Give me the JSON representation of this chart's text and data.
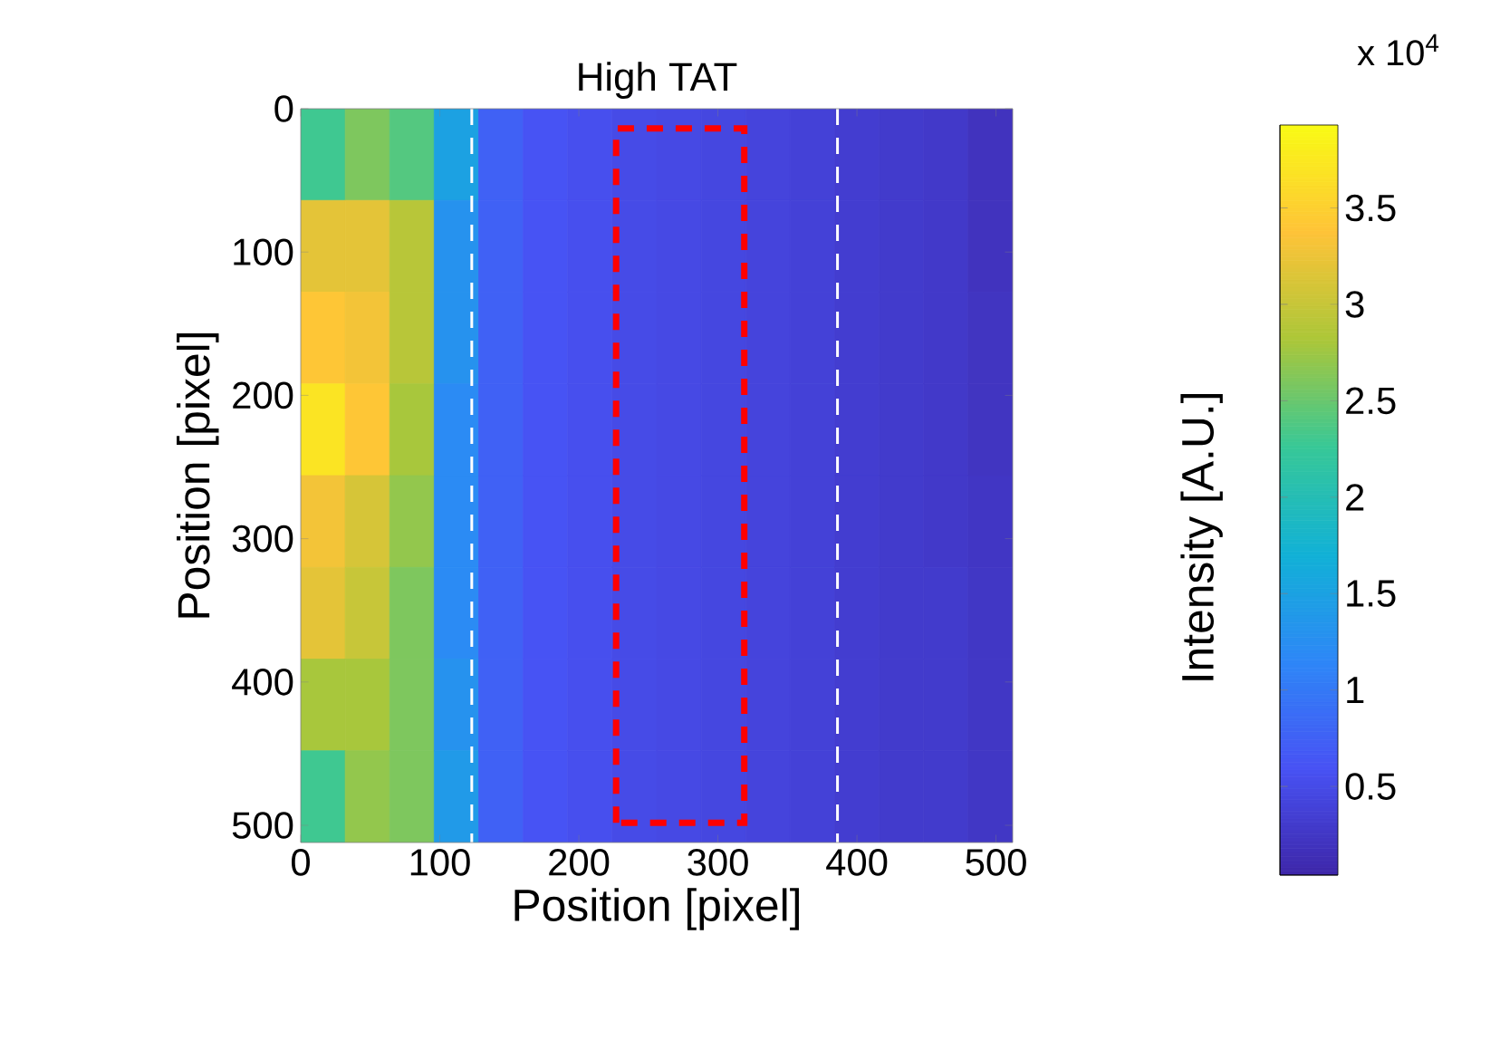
{
  "chart_data": {
    "type": "heatmap",
    "title": "High TAT",
    "xlabel": "Position [pixel]",
    "ylabel": "Position [pixel]",
    "clabel": "Intensity [A.U.]",
    "annotations": [
      "x 10$^{4}$"
    ],
    "x": [
      16,
      48,
      80,
      112,
      144,
      176,
      208,
      240,
      272,
      304,
      336,
      368,
      400,
      432,
      464,
      496
    ],
    "y": [
      32,
      96,
      160,
      224,
      288,
      352,
      416,
      480
    ],
    "cells": [
      [
        2.3,
        2.6,
        2.4,
        1.5,
        0.75,
        0.6,
        0.55,
        0.5,
        0.48,
        0.45,
        0.42,
        0.38,
        0.33,
        0.3,
        0.28,
        0.2
      ],
      [
        3.2,
        3.2,
        2.9,
        1.3,
        0.75,
        0.6,
        0.55,
        0.5,
        0.48,
        0.45,
        0.42,
        0.38,
        0.33,
        0.3,
        0.28,
        0.2
      ],
      [
        3.4,
        3.3,
        2.9,
        1.3,
        0.75,
        0.6,
        0.55,
        0.5,
        0.48,
        0.45,
        0.42,
        0.38,
        0.33,
        0.3,
        0.28,
        0.22
      ],
      [
        3.7,
        3.4,
        2.8,
        1.2,
        0.75,
        0.6,
        0.55,
        0.5,
        0.48,
        0.45,
        0.42,
        0.38,
        0.33,
        0.3,
        0.28,
        0.22
      ],
      [
        3.3,
        3.1,
        2.7,
        1.2,
        0.75,
        0.6,
        0.55,
        0.5,
        0.48,
        0.45,
        0.42,
        0.38,
        0.33,
        0.3,
        0.28,
        0.24
      ],
      [
        3.2,
        3.0,
        2.6,
        1.2,
        0.75,
        0.6,
        0.55,
        0.5,
        0.48,
        0.45,
        0.42,
        0.38,
        0.33,
        0.3,
        0.3,
        0.25
      ],
      [
        2.8,
        2.8,
        2.6,
        1.3,
        0.75,
        0.6,
        0.55,
        0.5,
        0.48,
        0.45,
        0.42,
        0.38,
        0.33,
        0.3,
        0.3,
        0.25
      ],
      [
        2.3,
        2.7,
        2.6,
        1.4,
        0.75,
        0.6,
        0.55,
        0.5,
        0.48,
        0.45,
        0.42,
        0.38,
        0.33,
        0.3,
        0.3,
        0.25
      ]
    ],
    "xlim": [
      0,
      512
    ],
    "ylim": [
      512,
      0
    ],
    "xticks": [
      0,
      100,
      200,
      300,
      400,
      500
    ],
    "yticks": [
      0,
      100,
      200,
      300,
      400,
      500
    ],
    "clim": [
      0.04,
      3.93
    ],
    "cticks": [
      0.5,
      1,
      1.5,
      2,
      2.5,
      3,
      3.5
    ],
    "ref_lines": [
      {
        "axis": "x",
        "value": 123,
        "color": "#ffffff",
        "line_style": "dashed"
      },
      {
        "axis": "x",
        "value": 386,
        "color": "#ffffff",
        "line_style": "dashed"
      }
    ]
  }
}
